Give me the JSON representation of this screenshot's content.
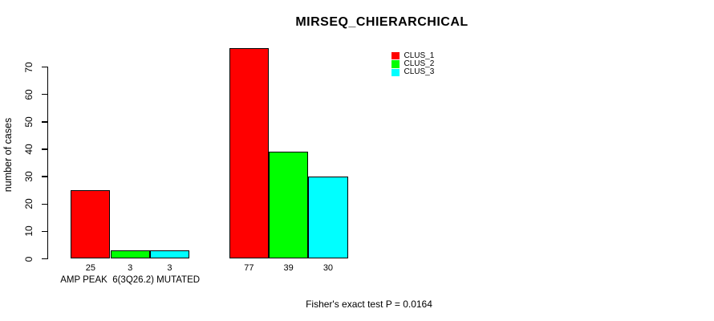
{
  "chart_data": {
    "type": "bar",
    "title": "MIRSEQ_CHIERARCHICAL",
    "ylabel": "number of cases",
    "xlabel": "",
    "ylim": [
      0,
      70
    ],
    "yticks": [
      0,
      10,
      20,
      30,
      40,
      50,
      60,
      70
    ],
    "grid": false,
    "background": "#ffffff",
    "bar_border_color": "#000000",
    "categories": [
      "AMP PEAK  6(3Q26.2) MUTATED",
      ""
    ],
    "series": [
      {
        "name": "CLUS_1",
        "color": "#ff0000",
        "values": [
          25,
          77
        ]
      },
      {
        "name": "CLUS_2",
        "color": "#00ff00",
        "values": [
          3,
          39
        ]
      },
      {
        "name": "CLUS_3",
        "color": "#00ffff",
        "values": [
          3,
          30
        ]
      }
    ],
    "value_labels_shown": true,
    "legend": {
      "position": "topright",
      "entries": [
        "CLUS_1",
        "CLUS_2",
        "CLUS_3"
      ]
    },
    "annotation": "Fisher's exact test P = 0.0164"
  }
}
